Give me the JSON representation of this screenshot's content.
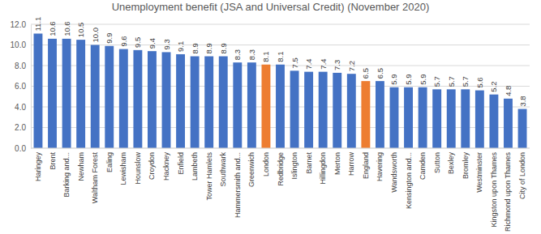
{
  "chart_data": {
    "type": "bar",
    "title": "Unemployment benefit (JSA and Universal Credit) (November 2020)",
    "categories": [
      "Haringey",
      "Brent",
      "Barking and...",
      "Newham",
      "Waltham Forest",
      "Ealing",
      "Lewisham",
      "Hounslow",
      "Croydon",
      "Hackney",
      "Enfield",
      "Lambeth",
      "Tower Hamlets",
      "Southwark",
      "Hammersmith and...",
      "Greenwich",
      "London",
      "Redbridge",
      "Islington",
      "Barnet",
      "Hillingdon",
      "Merton",
      "Harrow",
      "England",
      "Havering",
      "Wandsworth",
      "Kensington and...",
      "Camden",
      "Sutton",
      "Bexley",
      "Bromley",
      "Westminster",
      "Kingston upon Thames",
      "Richmond upon Thames",
      "City of London"
    ],
    "values": [
      11.1,
      10.6,
      10.6,
      10.5,
      10.0,
      9.9,
      9.6,
      9.5,
      9.4,
      9.3,
      9.1,
      8.9,
      8.9,
      8.9,
      8.3,
      8.3,
      8.1,
      8.1,
      7.5,
      7.4,
      7.4,
      7.3,
      7.2,
      6.5,
      6.5,
      5.9,
      5.9,
      5.9,
      5.7,
      5.7,
      5.7,
      5.6,
      5.2,
      4.8,
      3.8
    ],
    "value_labels": [
      "11.1",
      "10.6",
      "10.6",
      "10.5",
      "10.0",
      "9.9",
      "9.6",
      "9.5",
      "9.4",
      "9.3",
      "9.1",
      "8.9",
      "8.9",
      "8.9",
      "8.3",
      "8.3",
      "8.1",
      "8.1",
      "7.5",
      "7.4",
      "7.4",
      "7.3",
      "7.2",
      "6.5",
      "6.5",
      "5.9",
      "5.9",
      "5.9",
      "5.7",
      "5.7",
      "5.7",
      "5.6",
      "5.2",
      "4.8",
      "3.8"
    ],
    "colors": [
      "#4472c4",
      "#4472c4",
      "#4472c4",
      "#4472c4",
      "#4472c4",
      "#4472c4",
      "#4472c4",
      "#4472c4",
      "#4472c4",
      "#4472c4",
      "#4472c4",
      "#4472c4",
      "#4472c4",
      "#4472c4",
      "#4472c4",
      "#4472c4",
      "#ed7d31",
      "#4472c4",
      "#4472c4",
      "#4472c4",
      "#4472c4",
      "#4472c4",
      "#4472c4",
      "#ed7d31",
      "#4472c4",
      "#4472c4",
      "#4472c4",
      "#4472c4",
      "#4472c4",
      "#4472c4",
      "#4472c4",
      "#4472c4",
      "#4472c4",
      "#4472c4",
      "#4472c4"
    ],
    "ylim": [
      0,
      12
    ],
    "yticks": [
      {
        "value": 0,
        "label": "0.0"
      },
      {
        "value": 2,
        "label": "2.0"
      },
      {
        "value": 4,
        "label": "4.0"
      },
      {
        "value": 6,
        "label": "6.0"
      },
      {
        "value": 8,
        "label": "8.0"
      },
      {
        "value": 10,
        "label": "10.0"
      },
      {
        "value": 12,
        "label": "12.0"
      }
    ],
    "grid": true,
    "data_labels": true
  }
}
